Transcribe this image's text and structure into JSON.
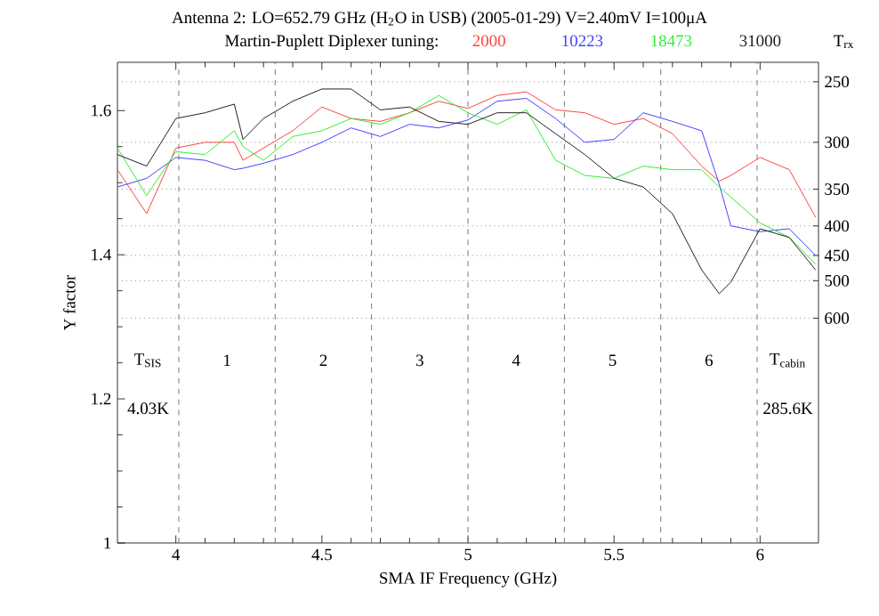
{
  "chart_data": {
    "type": "line",
    "title": "Antenna 2: LO=652.79 GHz (H$_{2}$O in USB) (2005-01-29) V=2.40mV I=100μA",
    "subtitle": "Martin-Puplett Diplexer tuning:",
    "xlabel": "SMA IF Frequency (GHz)",
    "ylabel": "Y factor",
    "y2label": "T$_{rx}$",
    "x": [
      3.8,
      3.9,
      4.0,
      4.1,
      4.2,
      4.23,
      4.3,
      4.4,
      4.5,
      4.6,
      4.7,
      4.8,
      4.9,
      5.0,
      5.1,
      5.2,
      5.3,
      5.4,
      5.5,
      5.6,
      5.7,
      5.8,
      5.86,
      5.9,
      6.0,
      6.1,
      6.19
    ],
    "series": [
      {
        "name": "2000",
        "color": "#ff4444",
        "values": [
          1.518,
          1.457,
          1.548,
          1.556,
          1.556,
          1.531,
          1.548,
          1.572,
          1.605,
          1.589,
          1.585,
          1.597,
          1.613,
          1.603,
          1.621,
          1.626,
          1.601,
          1.597,
          1.581,
          1.589,
          1.568,
          1.523,
          1.502,
          1.51,
          1.535,
          1.518,
          1.452
        ]
      },
      {
        "name": "10223",
        "color": "#4444ff",
        "values": [
          1.494,
          1.506,
          1.535,
          1.531,
          1.518,
          1.52,
          1.527,
          1.539,
          1.556,
          1.576,
          1.564,
          1.581,
          1.576,
          1.587,
          1.613,
          1.617,
          1.589,
          1.556,
          1.56,
          1.597,
          1.585,
          1.572,
          1.498,
          1.44,
          1.432,
          1.436,
          1.399
        ]
      },
      {
        "name": "18473",
        "color": "#33ee33",
        "values": [
          1.548,
          1.482,
          1.543,
          1.539,
          1.572,
          1.55,
          1.531,
          1.564,
          1.572,
          1.589,
          1.581,
          1.597,
          1.621,
          1.597,
          1.581,
          1.601,
          1.531,
          1.51,
          1.506,
          1.523,
          1.518,
          1.518,
          1.494,
          1.48,
          1.444,
          1.424,
          1.387
        ]
      },
      {
        "name": "31000",
        "color": "#222222",
        "values": [
          1.539,
          1.523,
          1.589,
          1.597,
          1.609,
          1.56,
          1.589,
          1.613,
          1.63,
          1.63,
          1.601,
          1.605,
          1.585,
          1.581,
          1.597,
          1.597,
          1.568,
          1.539,
          1.506,
          1.494,
          1.457,
          1.379,
          1.346,
          1.362,
          1.436,
          1.424,
          1.379
        ]
      }
    ],
    "xlim": [
      3.8,
      6.2
    ],
    "ylim": [
      1,
      1.667
    ],
    "xticks": [
      4,
      4.5,
      5,
      5.5,
      6
    ],
    "yticks": [
      1,
      1.2,
      1.4,
      1.6
    ],
    "ref_lines": [
      {
        "axis": "x",
        "value": 4.01,
        "line_style": "dashed",
        "color": "#777777"
      },
      {
        "axis": "x",
        "value": 4.34,
        "line_style": "dashed",
        "color": "#777777"
      },
      {
        "axis": "x",
        "value": 4.67,
        "line_style": "dashed",
        "color": "#777777"
      },
      {
        "axis": "x",
        "value": 5.0,
        "line_style": "dashed",
        "color": "#777777"
      },
      {
        "axis": "x",
        "value": 5.33,
        "line_style": "dashed",
        "color": "#777777"
      },
      {
        "axis": "x",
        "value": 5.66,
        "line_style": "dashed",
        "color": "#777777"
      },
      {
        "axis": "x",
        "value": 5.99,
        "line_style": "dashed",
        "color": "#777777"
      },
      {
        "axis": "y",
        "value": 1.64,
        "line_style": "dotted",
        "color": "#888888"
      },
      {
        "axis": "y",
        "value": 1.556,
        "line_style": "dotted",
        "color": "#888888"
      },
      {
        "axis": "y",
        "value": 1.491,
        "line_style": "dotted",
        "color": "#888888"
      },
      {
        "axis": "y",
        "value": 1.44,
        "line_style": "dotted",
        "color": "#888888"
      },
      {
        "axis": "y",
        "value": 1.399,
        "line_style": "dotted",
        "color": "#888888"
      },
      {
        "axis": "y",
        "value": 1.364,
        "line_style": "dotted",
        "color": "#888888"
      },
      {
        "axis": "y",
        "value": 1.312,
        "line_style": "dotted",
        "color": "#888888"
      }
    ],
    "annotations": [
      "T$_{SIS}$",
      "4.03K",
      "1",
      "2",
      "3",
      "4",
      "5",
      "6",
      "T$_{cabin}$",
      "285.6K",
      "250",
      "300",
      "350",
      "400",
      "450",
      "500",
      "600"
    ],
    "legend": "top",
    "marker": "none",
    "line_style": "solid"
  }
}
